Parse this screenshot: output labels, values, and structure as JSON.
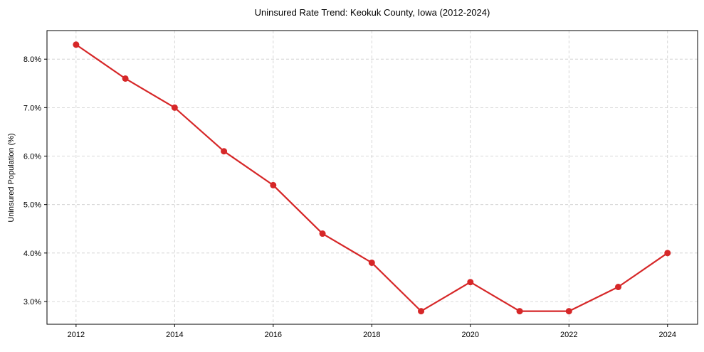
{
  "chart_data": {
    "type": "line",
    "title": "Uninsured Rate Trend: Keokuk County, Iowa (2012-2024)",
    "xlabel": "",
    "ylabel": "Uninsured Population (%)",
    "x": [
      2012,
      2013,
      2014,
      2015,
      2016,
      2017,
      2018,
      2019,
      2020,
      2021,
      2022,
      2023,
      2024
    ],
    "series": [
      {
        "name": "Uninsured Rate",
        "values": [
          8.3,
          7.6,
          7.0,
          6.1,
          5.4,
          4.4,
          3.8,
          2.8,
          3.4,
          2.8,
          2.8,
          3.3,
          4.0
        ],
        "color": "#d62728"
      }
    ],
    "xticks": [
      2012,
      2014,
      2016,
      2018,
      2020,
      2022,
      2024
    ],
    "xtick_labels": [
      "2012",
      "2014",
      "2016",
      "2018",
      "2020",
      "2022",
      "2024"
    ],
    "yticks": [
      3.0,
      4.0,
      5.0,
      6.0,
      7.0,
      8.0
    ],
    "ytick_labels": [
      "3.0%",
      "4.0%",
      "5.0%",
      "6.0%",
      "7.0%",
      "8.0%"
    ],
    "xlim": [
      2011.41,
      2024.61
    ],
    "ylim": [
      2.53,
      8.59
    ],
    "grid": true
  }
}
